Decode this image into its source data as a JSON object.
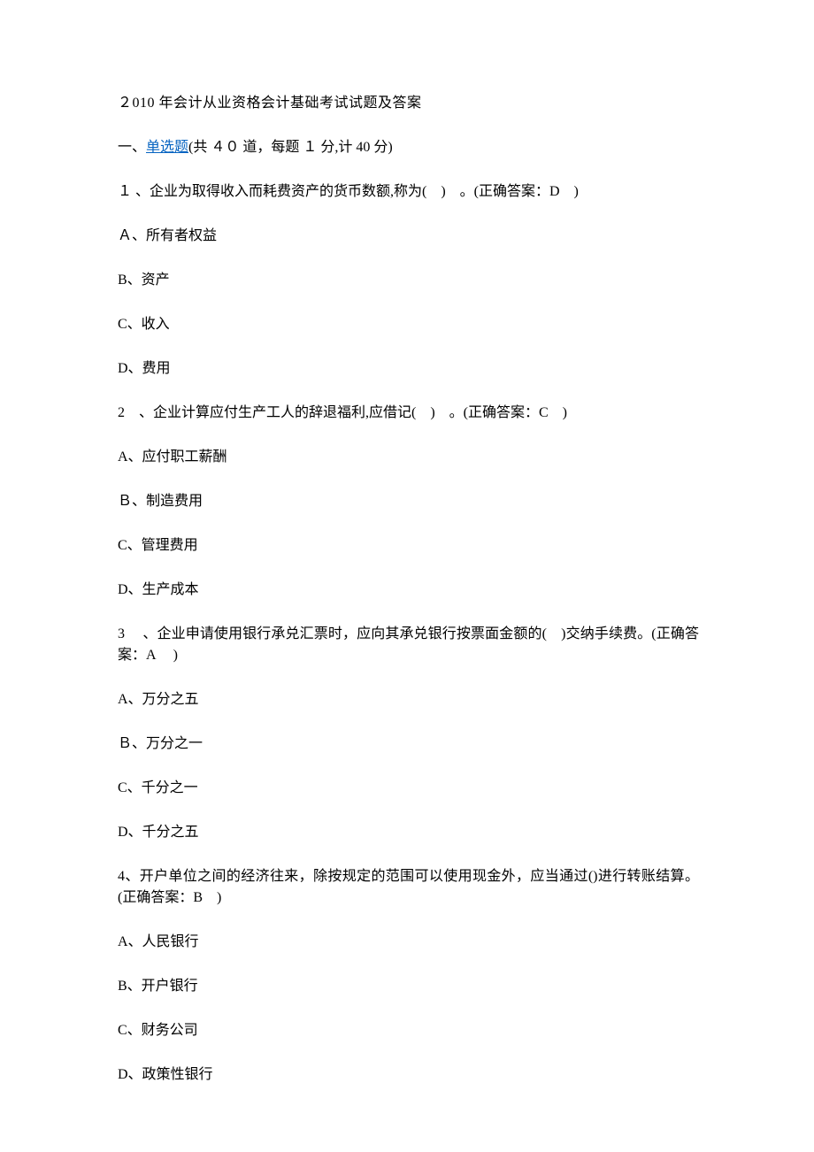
{
  "title": "２010 年会计从业资格会计基础考试试题及答案",
  "sectionHeader": {
    "prefix": "一、",
    "link": "单选题",
    "suffix": "(共 ４０ 道，每题 １ 分,计 40 分)"
  },
  "questions": [
    {
      "stem": "１ 、企业为取得收入而耗费资产的货币数额,称为(　)　。(正确答案：D　)",
      "options": [
        "Ａ、所有者权益",
        "B、资产",
        "C、收入",
        "D、费用"
      ]
    },
    {
      "stem": "2　、企业计算应付生产工人的辞退福利,应借记(　)　。(正确答案：C　)",
      "options": [
        "A、应付职工薪酬",
        "Ｂ、制造费用",
        "C、管理费用",
        "D、生产成本"
      ]
    },
    {
      "stem": "3　 、企业申请使用银行承兑汇票时，应向其承兑银行按票面金额的(　)交纳手续费。(正确答案：A　 )",
      "options": [
        "A、万分之五",
        "Ｂ、万分之一",
        "C、千分之一",
        "D、千分之五"
      ]
    },
    {
      "stem": "4、开户单位之间的经济往来，除按规定的范围可以使用现金外，应当通过()进行转账结算。(正确答案：B　)",
      "options": [
        "A、人民银行",
        "B、开户银行",
        "C、财务公司",
        "D、政策性银行"
      ]
    }
  ]
}
